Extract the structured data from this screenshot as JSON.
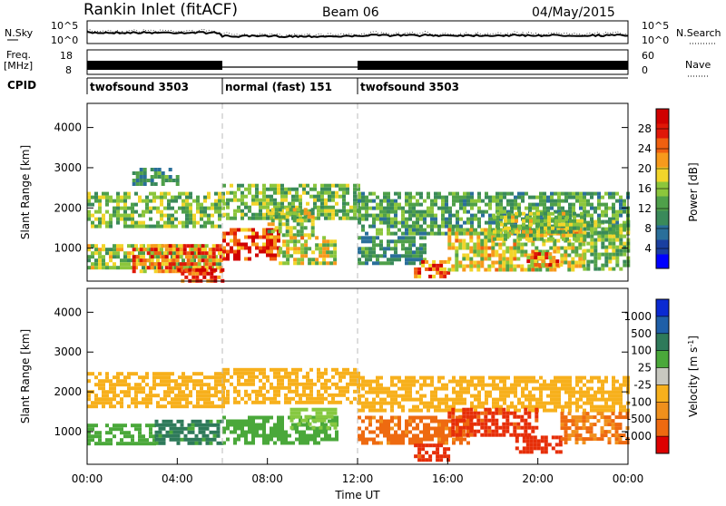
{
  "header": {
    "station": "Rankin Inlet (fitACF)",
    "beam": "Beam 06",
    "date": "04/May/2015"
  },
  "status_panels": {
    "nsky_label": "N.Sky",
    "nsearch_label": "N.Search",
    "nsky_ticks": [
      "10^5",
      "10^0"
    ],
    "nsearch_ticks": [
      "10^5",
      "10^0"
    ],
    "freq_label": "Freq.",
    "freq_unit": "[MHz]",
    "freq_ticks": [
      "18",
      "8"
    ],
    "nave_label": "Nave",
    "nave_ticks": [
      "60",
      "0"
    ],
    "cpid_label": "CPID",
    "cpid_segments": [
      {
        "label": "twofsound 3503",
        "start_hour": 0,
        "end_hour": 6
      },
      {
        "label": "normal (fast) 151",
        "start_hour": 6,
        "end_hour": 12
      },
      {
        "label": "twofsound 3503",
        "start_hour": 12,
        "end_hour": 24
      }
    ]
  },
  "colors": {
    "power_scale": [
      "#0000ff",
      "#1a3fa0",
      "#2a6f9a",
      "#3a8a5a",
      "#4fa04a",
      "#8cc63c",
      "#f2d52a",
      "#f79a1c",
      "#f06010",
      "#e01808",
      "#d00000"
    ],
    "velocity_scale": [
      "#0a2ad2",
      "#1f5fa8",
      "#2e7a5a",
      "#4aa83a",
      "#86c840",
      "#c8c8c0",
      "#f7b01c",
      "#f0901c",
      "#ee6a10",
      "#e62e08",
      "#dd0000"
    ]
  },
  "chart_data": [
    {
      "type": "heatmap",
      "name": "power",
      "xlabel": "",
      "ylabel": "Slant Range [km]",
      "xlim": [
        0,
        24
      ],
      "ylim": [
        180,
        4600
      ],
      "yticks": [
        "1000",
        "2000",
        "3000",
        "4000"
      ],
      "colorbar": {
        "label": "Power [dB]",
        "ticks": [
          "4",
          "8",
          "12",
          "16",
          "20",
          "24",
          "28"
        ],
        "range": [
          0,
          32
        ]
      },
      "bands": [
        {
          "x": [
            0,
            6
          ],
          "y": [
            1500,
            2400
          ],
          "value": 14
        },
        {
          "x": [
            0,
            6
          ],
          "y": [
            500,
            1100
          ],
          "value": 16
        },
        {
          "x": [
            2,
            6
          ],
          "y": [
            400,
            1100
          ],
          "value": 24
        },
        {
          "x": [
            4,
            6
          ],
          "y": [
            200,
            500
          ],
          "value": 28
        },
        {
          "x": [
            6,
            8.5
          ],
          "y": [
            700,
            1500
          ],
          "value": 28
        },
        {
          "x": [
            6,
            12
          ],
          "y": [
            1700,
            2600
          ],
          "value": 14
        },
        {
          "x": [
            8,
            10
          ],
          "y": [
            1300,
            2000
          ],
          "value": 16
        },
        {
          "x": [
            8.5,
            11
          ],
          "y": [
            600,
            1300
          ],
          "value": 18
        },
        {
          "x": [
            12,
            24
          ],
          "y": [
            1400,
            2400
          ],
          "value": 12
        },
        {
          "x": [
            12,
            15
          ],
          "y": [
            600,
            1300
          ],
          "value": 10
        },
        {
          "x": [
            14.5,
            16
          ],
          "y": [
            250,
            700
          ],
          "value": 26
        },
        {
          "x": [
            16,
            22
          ],
          "y": [
            500,
            1500
          ],
          "value": 18
        },
        {
          "x": [
            18,
            22
          ],
          "y": [
            1200,
            1900
          ],
          "value": 16
        },
        {
          "x": [
            19.5,
            21
          ],
          "y": [
            600,
            900
          ],
          "value": 24
        },
        {
          "x": [
            22,
            24
          ],
          "y": [
            500,
            1700
          ],
          "value": 14
        },
        {
          "x": [
            2,
            4
          ],
          "y": [
            2600,
            3000
          ],
          "value": 10
        }
      ]
    },
    {
      "type": "heatmap",
      "name": "velocity",
      "xlabel": "Time UT",
      "ylabel": "Slant Range [km]",
      "xlim": [
        0,
        24
      ],
      "ylim": [
        180,
        4600
      ],
      "xticks": [
        "00:00",
        "04:00",
        "08:00",
        "12:00",
        "16:00",
        "20:00",
        "00:00"
      ],
      "yticks": [
        "1000",
        "2000",
        "3000",
        "4000"
      ],
      "colorbar": {
        "label": "Velocity [m s",
        "label_sup": "-1",
        "label_end": "]",
        "ticks": [
          "1000",
          "500",
          "100",
          "25",
          "-25",
          "-100",
          "-500",
          "-1000"
        ]
      },
      "bands": [
        {
          "x": [
            0,
            6
          ],
          "y": [
            1600,
            2500
          ],
          "value": 0
        },
        {
          "x": [
            0,
            3
          ],
          "y": [
            700,
            1200
          ],
          "value": 150
        },
        {
          "x": [
            3,
            6
          ],
          "y": [
            700,
            1300
          ],
          "value": 300
        },
        {
          "x": [
            6,
            12
          ],
          "y": [
            1700,
            2600
          ],
          "value": 0
        },
        {
          "x": [
            6,
            11
          ],
          "y": [
            700,
            1400
          ],
          "value": 150
        },
        {
          "x": [
            9,
            11
          ],
          "y": [
            1100,
            1600
          ],
          "value": 80
        },
        {
          "x": [
            12,
            24
          ],
          "y": [
            1500,
            2400
          ],
          "value": 0
        },
        {
          "x": [
            12,
            17
          ],
          "y": [
            700,
            1400
          ],
          "value": -120
        },
        {
          "x": [
            16,
            20
          ],
          "y": [
            900,
            1600
          ],
          "value": -300
        },
        {
          "x": [
            19,
            21
          ],
          "y": [
            500,
            900
          ],
          "value": -400
        },
        {
          "x": [
            21,
            24
          ],
          "y": [
            700,
            1500
          ],
          "value": -100
        },
        {
          "x": [
            14.5,
            16
          ],
          "y": [
            250,
            700
          ],
          "value": -300
        }
      ]
    }
  ]
}
